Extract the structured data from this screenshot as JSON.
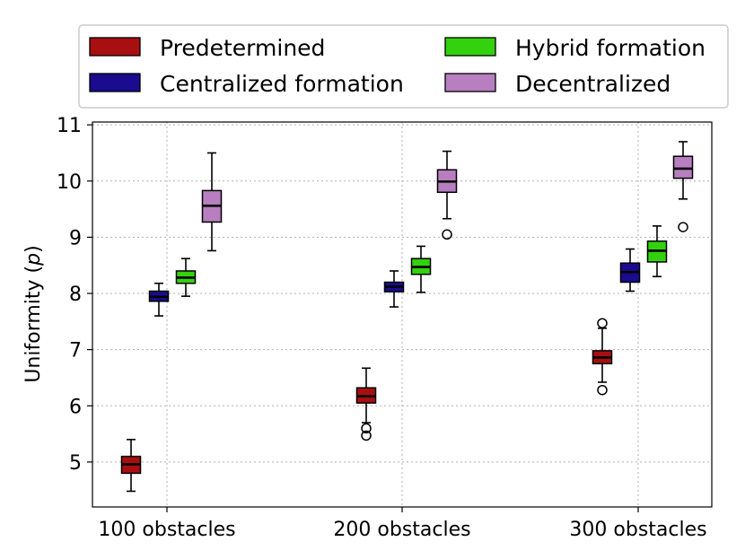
{
  "chart_data": {
    "type": "box",
    "title": "",
    "xlabel": "",
    "ylabel": "Uniformity (",
    "ylabel_symbol": "p",
    "ylabel_suffix": ")",
    "ylim": [
      4.2,
      11.05
    ],
    "yticks": [
      5,
      6,
      7,
      8,
      9,
      10,
      11
    ],
    "categories": [
      "100 obstacles",
      "200 obstacles",
      "300 obstacles"
    ],
    "grid": true,
    "legend_position": "top",
    "series": [
      {
        "name": "Predetermined",
        "color": "#a80f10",
        "boxes": [
          {
            "whislo": 4.48,
            "q1": 4.8,
            "med": 4.96,
            "q3": 5.1,
            "whishi": 5.4,
            "fliers": []
          },
          {
            "whislo": 5.7,
            "q1": 6.05,
            "med": 6.17,
            "q3": 6.32,
            "whishi": 6.67,
            "fliers": [
              5.6,
              5.47
            ]
          },
          {
            "whislo": 6.42,
            "q1": 6.75,
            "med": 6.86,
            "q3": 6.98,
            "whishi": 7.38,
            "fliers": [
              7.47,
              6.28
            ]
          }
        ]
      },
      {
        "name": "Centralized formation",
        "color": "#1a0b8f",
        "boxes": [
          {
            "whislo": 7.6,
            "q1": 7.86,
            "med": 7.94,
            "q3": 8.04,
            "whishi": 8.18,
            "fliers": []
          },
          {
            "whislo": 7.76,
            "q1": 8.03,
            "med": 8.12,
            "q3": 8.2,
            "whishi": 8.4,
            "fliers": []
          },
          {
            "whislo": 8.04,
            "q1": 8.2,
            "med": 8.38,
            "q3": 8.54,
            "whishi": 8.79,
            "fliers": []
          }
        ]
      },
      {
        "name": "Hybrid formation",
        "color": "#33d10e",
        "boxes": [
          {
            "whislo": 7.95,
            "q1": 8.18,
            "med": 8.28,
            "q3": 8.4,
            "whishi": 8.62,
            "fliers": []
          },
          {
            "whislo": 8.02,
            "q1": 8.34,
            "med": 8.47,
            "q3": 8.62,
            "whishi": 8.84,
            "fliers": []
          },
          {
            "whislo": 8.3,
            "q1": 8.56,
            "med": 8.76,
            "q3": 8.93,
            "whishi": 9.2,
            "fliers": []
          }
        ]
      },
      {
        "name": "Decentralized",
        "color": "#b87fc0",
        "boxes": [
          {
            "whislo": 8.76,
            "q1": 9.27,
            "med": 9.56,
            "q3": 9.83,
            "whishi": 10.5,
            "fliers": []
          },
          {
            "whislo": 9.33,
            "q1": 9.8,
            "med": 9.99,
            "q3": 10.2,
            "whishi": 10.53,
            "fliers": [
              9.05
            ]
          },
          {
            "whislo": 9.68,
            "q1": 10.05,
            "med": 10.22,
            "q3": 10.44,
            "whishi": 10.7,
            "fliers": [
              9.18
            ]
          }
        ]
      }
    ]
  }
}
